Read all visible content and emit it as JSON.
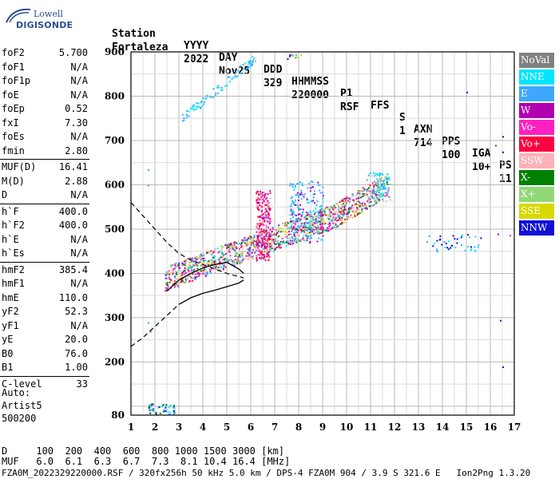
{
  "logo": {
    "line1": "Lowell",
    "line2": "DIGISONDE"
  },
  "header": {
    "labels": [
      "Station",
      "YYYY",
      "DAY",
      "DDD",
      "HHMMSS",
      "P1",
      "FFS",
      "S",
      "AXN",
      "PPS",
      "IGA",
      "PS"
    ],
    "values": [
      "Fortaleza",
      "2022",
      "Nov25",
      "329",
      "220000",
      "RSF",
      "",
      "1",
      "714",
      "100",
      "10+",
      "11"
    ]
  },
  "params": [
    {
      "label": "foF2",
      "value": "5.700"
    },
    {
      "label": "foF1",
      "value": "N/A"
    },
    {
      "label": "foF1p",
      "value": "N/A"
    },
    {
      "label": "foE",
      "value": "N/A"
    },
    {
      "label": "foEp",
      "value": "0.52"
    },
    {
      "label": "fxI",
      "value": "7.30"
    },
    {
      "label": "foEs",
      "value": "N/A"
    },
    {
      "label": "fmin",
      "value": "2.80"
    },
    {
      "label": "MUF(D)",
      "value": "16.41"
    },
    {
      "label": "M(D)",
      "value": "2.88"
    },
    {
      "label": "D",
      "value": "N/A"
    },
    {
      "label": "h`F",
      "value": "400.0"
    },
    {
      "label": "h`F2",
      "value": "400.0"
    },
    {
      "label": "h`E",
      "value": "N/A"
    },
    {
      "label": "h`Es",
      "value": "N/A"
    },
    {
      "label": "hmF2",
      "value": "385.4"
    },
    {
      "label": "hmF1",
      "value": "N/A"
    },
    {
      "label": "hmE",
      "value": "110.0"
    },
    {
      "label": "yF2",
      "value": "52.3"
    },
    {
      "label": "yF1",
      "value": "N/A"
    },
    {
      "label": "yE",
      "value": "20.0"
    },
    {
      "label": "B0",
      "value": "76.0"
    },
    {
      "label": "B1",
      "value": "1.00"
    },
    {
      "label": "C-level",
      "value": "33"
    }
  ],
  "auto": {
    "line1": "Auto:",
    "line2": "Artist5",
    "line3": "500200"
  },
  "legend": [
    {
      "label": "NoVal",
      "color": "#808080"
    },
    {
      "label": "NNE",
      "color": "#00e5ff"
    },
    {
      "label": "E",
      "color": "#3ea8ff"
    },
    {
      "label": "W",
      "color": "#b000b0"
    },
    {
      "label": "Vo-",
      "color": "#ff20c0"
    },
    {
      "label": "Vo+",
      "color": "#ff0040"
    },
    {
      "label": "SSW",
      "color": "#ffb0b8"
    },
    {
      "label": "X-",
      "color": "#008000"
    },
    {
      "label": "X+",
      "color": "#90d878"
    },
    {
      "label": "SSE",
      "color": "#d8d800"
    },
    {
      "label": "NNW",
      "color": "#1010d8"
    }
  ],
  "footer": {
    "line1": "D     100  200  400  600  800 1000 1500 3000 [km]",
    "line2": "MUF   6.0  6.1  6.3  6.7  7.3  8.1 10.4 16.4 [MHz]",
    "line3": "FZA0M_2022329220000.RSF / 320fx256h 50 kHz 5.0 km / DPS-4 FZA0M 904 / 3.9 S 321.6 E   Ion2Png 1.3.20"
  },
  "chart_data": {
    "type": "scatter",
    "title": "",
    "xlabel": "",
    "ylabel": "",
    "xlim": [
      1,
      17
    ],
    "ylim": [
      80,
      900
    ],
    "x_ticks": [
      1,
      2,
      3,
      4,
      5,
      6,
      7,
      8,
      9,
      10,
      11,
      12,
      13,
      14,
      15,
      16,
      17
    ],
    "y_ticks": [
      80,
      200,
      300,
      400,
      500,
      600,
      700,
      800,
      900
    ],
    "grid": true,
    "legend_position": "right",
    "echo_clusters": [
      {
        "name": "F2 main trace",
        "x_range": [
          2.4,
          11.8
        ],
        "y_range": [
          370,
          620
        ]
      },
      {
        "name": "vertical spread near 6.5 MHz",
        "x_range": [
          6.2,
          6.8
        ],
        "y_range": [
          430,
          590
        ]
      },
      {
        "name": "second-hop trace",
        "x_range": [
          3.1,
          6.2
        ],
        "y_range": [
          740,
          900
        ]
      },
      {
        "name": "low-height echoes",
        "x_range": [
          1.7,
          2.8
        ],
        "y_range": [
          80,
          110
        ]
      },
      {
        "name": "high-frequency echoes",
        "x_range": [
          13.3,
          16.5
        ],
        "y_range": [
          450,
          495
        ]
      }
    ],
    "profile_curve": {
      "x": [
        2.5,
        3.0,
        3.5,
        4.0,
        4.5,
        5.0,
        5.5,
        5.7
      ],
      "y": [
        360,
        385,
        400,
        412,
        420,
        425,
        410,
        400
      ]
    },
    "dashed_extrapolation": {
      "x": [
        1.0,
        1.5,
        2.0,
        2.5,
        3.0,
        3.5,
        4.0,
        4.5,
        5.0,
        5.7
      ],
      "y": [
        560,
        530,
        500,
        470,
        445,
        430,
        420,
        410,
        400,
        390
      ]
    },
    "dashed_lower": {
      "x": [
        1.0,
        1.5,
        2.0,
        2.5,
        3.0
      ],
      "y": [
        235,
        255,
        280,
        305,
        330
      ]
    }
  }
}
